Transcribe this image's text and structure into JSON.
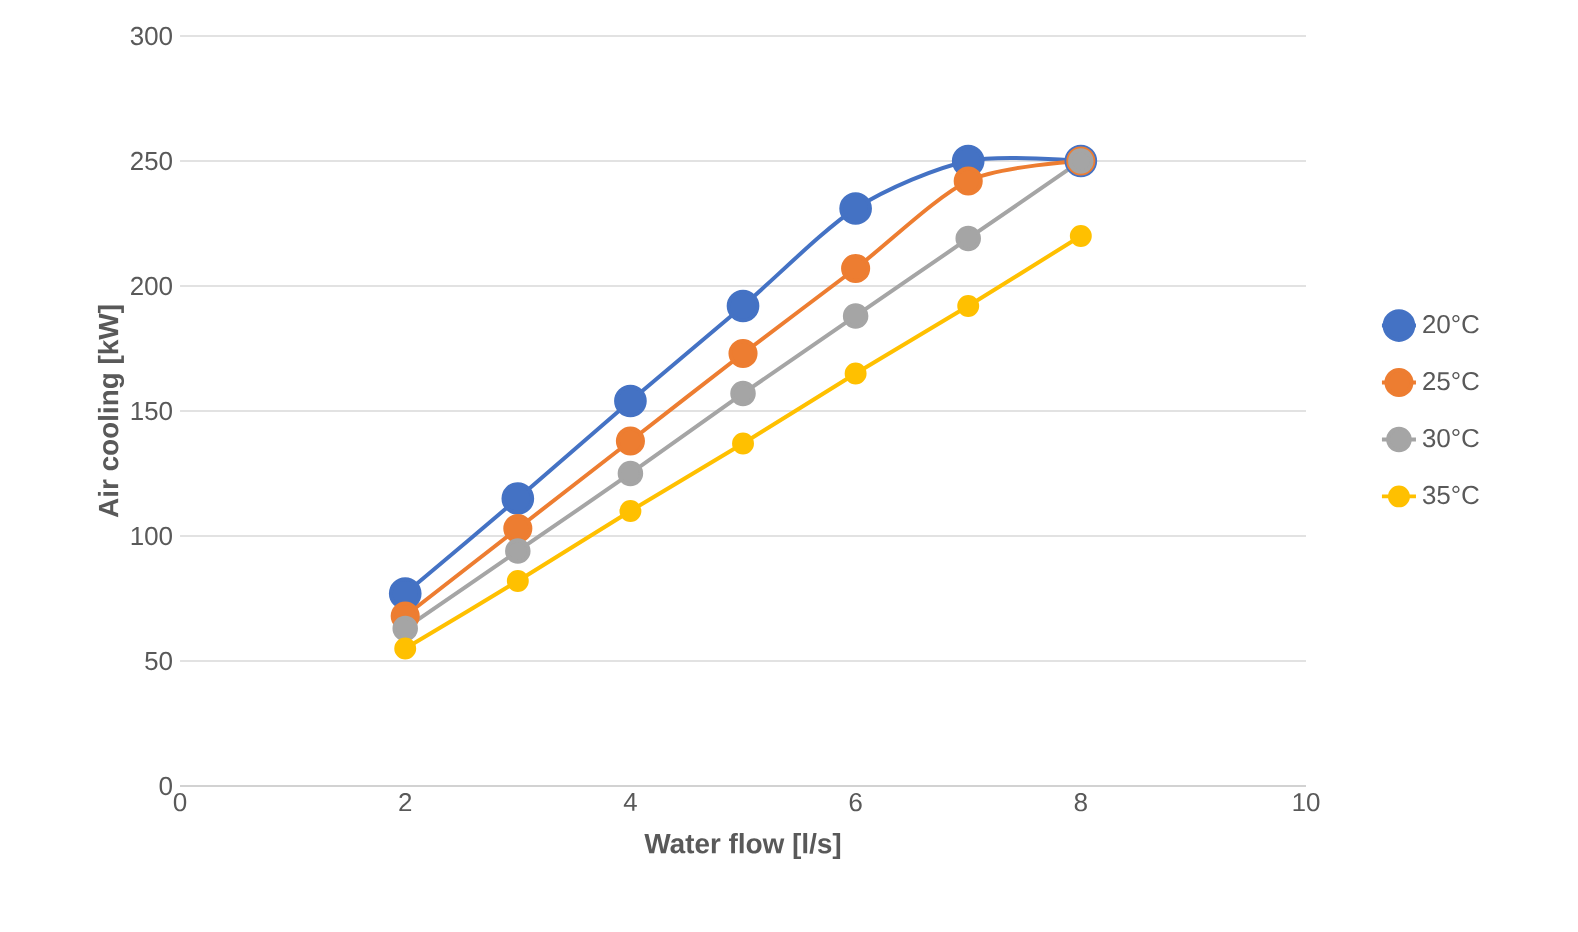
{
  "chart_data": {
    "type": "line",
    "xlabel": "Water flow [l/s]",
    "ylabel": "Air cooling [kW]",
    "x": [
      2,
      3,
      4,
      5,
      6,
      7,
      8
    ],
    "series": [
      {
        "name": "20°C",
        "color": "#4472c4",
        "values": [
          77,
          115,
          154,
          192,
          231,
          250,
          250
        ]
      },
      {
        "name": "25°C",
        "color": "#ed7d31",
        "values": [
          68,
          103,
          138,
          173,
          207,
          242,
          250
        ]
      },
      {
        "name": "30°C",
        "color": "#a5a5a5",
        "values": [
          63,
          94,
          125,
          157,
          188,
          219,
          250
        ]
      },
      {
        "name": "35°C",
        "color": "#ffc000",
        "values": [
          55,
          82,
          110,
          137,
          165,
          192,
          220
        ]
      }
    ],
    "xlim": [
      0,
      10
    ],
    "xticks": [
      0,
      2,
      4,
      6,
      8,
      10
    ],
    "ylim": [
      0,
      300
    ],
    "yticks": [
      0,
      50,
      100,
      150,
      200,
      250,
      300
    ],
    "grid": "y",
    "legend": "right",
    "marker": "circle",
    "line_style": "solid"
  }
}
